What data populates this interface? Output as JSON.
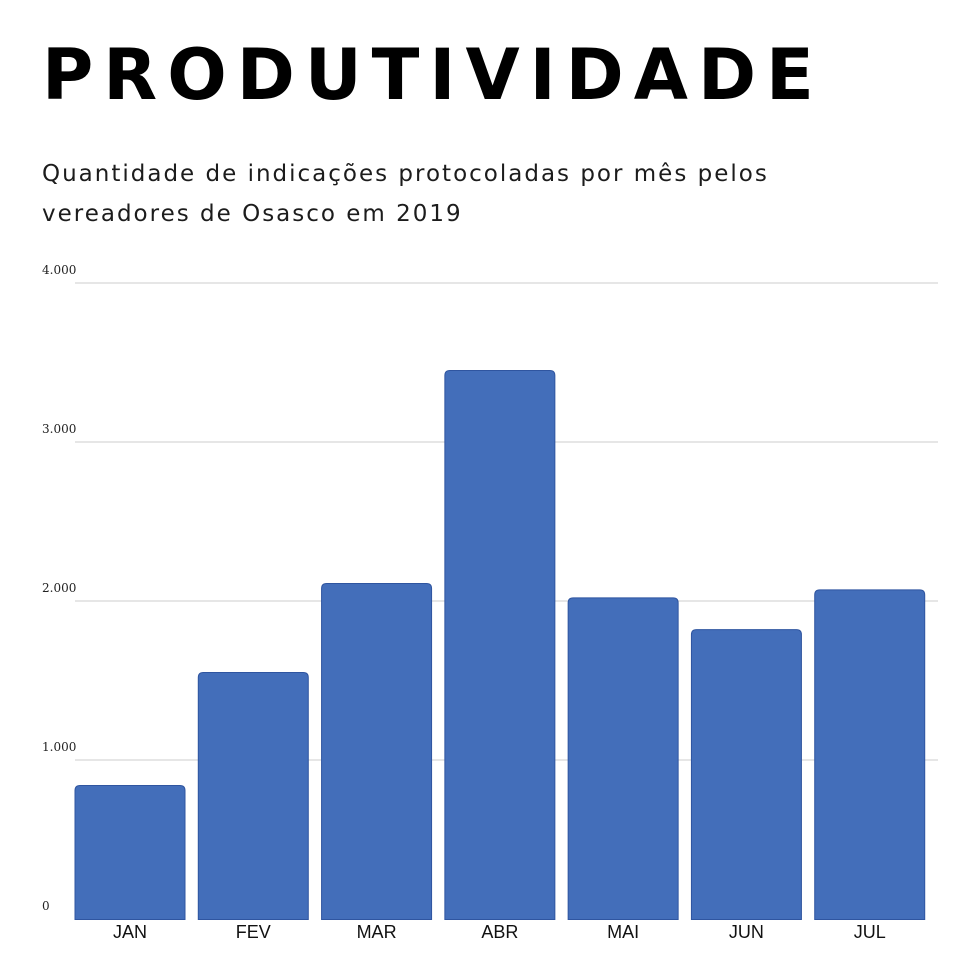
{
  "title": "PRODUTIVIDADE",
  "subtitle": "Quantidade de indicações protocoladas por mês pelos vereadores de Osasco em 2019",
  "chart_data": {
    "type": "bar",
    "categories": [
      "JAN",
      "FEV",
      "MAR",
      "ABR",
      "MAI",
      "JUN",
      "JUL"
    ],
    "values": [
      840,
      1550,
      2110,
      3450,
      2020,
      1820,
      2070
    ],
    "ylim": [
      0,
      4000
    ],
    "yticks": [
      0,
      1000,
      2000,
      3000,
      4000
    ],
    "ytick_labels": [
      "0",
      "1.000",
      "2.000",
      "3.000",
      "4.000"
    ],
    "xlabel": "",
    "ylabel": "",
    "grid": true,
    "legend": "none",
    "bar_color": "#436eba",
    "bar_edge_color": "#2f55a0",
    "grid_color": "#cccccc"
  }
}
